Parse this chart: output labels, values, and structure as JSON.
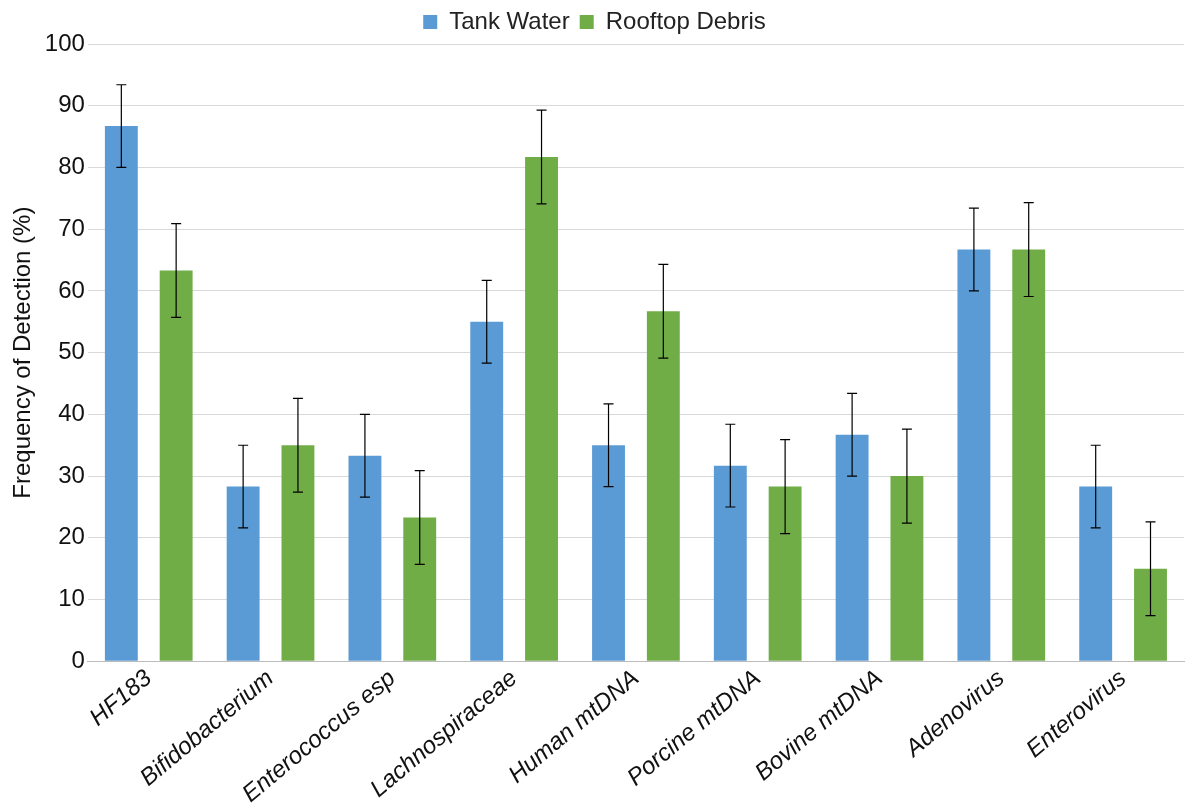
{
  "chart_data": {
    "type": "bar",
    "ylabel": "Frequency of Detection (%)",
    "categories": [
      "HF183",
      "Bifidobacterium",
      "Enterococcus esp",
      "Lachnospiraceae",
      "Human mtDNA",
      "Porcine mtDNA",
      "Bovine mtDNA",
      "Adenovirus",
      "Enterovirus"
    ],
    "series": [
      {
        "name": "Tank Water",
        "color": "#5b9bd5",
        "values": [
          86.7,
          28.3,
          33.3,
          55,
          35,
          31.7,
          36.7,
          66.7,
          28.3
        ],
        "errors": [
          6.7,
          6.7,
          6.7,
          6.7,
          6.7,
          6.7,
          6.7,
          6.7,
          6.7
        ]
      },
      {
        "name": "Rooftop Debris",
        "color": "#70ad47",
        "values": [
          63.3,
          35,
          23.3,
          81.7,
          56.7,
          28.3,
          30,
          66.7,
          15
        ],
        "errors": [
          7.6,
          7.6,
          7.6,
          7.6,
          7.6,
          7.6,
          7.6,
          7.6,
          7.6
        ]
      }
    ],
    "ylim": [
      0,
      100
    ],
    "yticks": [
      0,
      10,
      20,
      30,
      40,
      50,
      60,
      70,
      80,
      90,
      100
    ],
    "grid": "y",
    "legend": "top"
  }
}
